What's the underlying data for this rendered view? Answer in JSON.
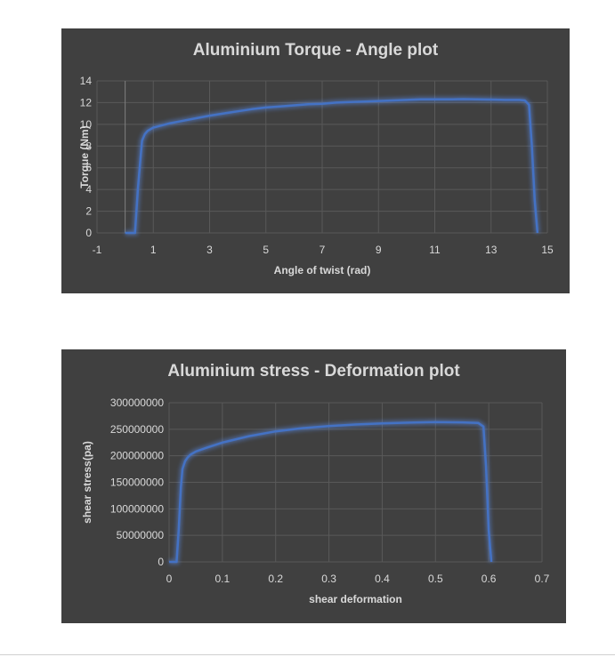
{
  "colors": {
    "panel_bg": "#404040",
    "text": "#d9d9d9",
    "grid": "#595959",
    "line": "#4472c4",
    "glow": "#5b8ff0"
  },
  "chart_data": [
    {
      "type": "line",
      "title": "Aluminium Torque  - Angle plot",
      "xlabel": "Angle of twist (rad)",
      "ylabel": "Torque (Nm)",
      "xlim": [
        -1,
        15
      ],
      "ylim": [
        0,
        14
      ],
      "xticks": [
        -1,
        1,
        3,
        5,
        7,
        9,
        11,
        13,
        15
      ],
      "yticks": [
        0,
        2,
        4,
        6,
        8,
        10,
        12,
        14
      ],
      "grid": true,
      "legend": "none",
      "series": [
        {
          "x": [
            0.0,
            0.35,
            0.45,
            0.55,
            0.6,
            0.7,
            0.8,
            1.0,
            1.3,
            1.6,
            2.0,
            2.5,
            3.0,
            3.5,
            4.0,
            4.5,
            5.0,
            5.5,
            6.0,
            6.5,
            7.0,
            7.5,
            8.0,
            8.5,
            9.0,
            9.5,
            10.0,
            10.5,
            11.0,
            11.5,
            12.0,
            12.5,
            13.0,
            13.5,
            14.0,
            14.2,
            14.35,
            14.45,
            14.55,
            14.65
          ],
          "y": [
            0,
            0,
            4.0,
            7.0,
            8.5,
            9.1,
            9.4,
            9.7,
            9.9,
            10.1,
            10.3,
            10.55,
            10.8,
            11.0,
            11.2,
            11.4,
            11.55,
            11.65,
            11.75,
            11.85,
            11.9,
            12.0,
            12.05,
            12.1,
            12.15,
            12.2,
            12.25,
            12.3,
            12.3,
            12.3,
            12.32,
            12.3,
            12.28,
            12.25,
            12.25,
            12.2,
            11.8,
            8.0,
            3.0,
            0
          ]
        }
      ]
    },
    {
      "type": "line",
      "title": "Aluminium stress - Deformation plot",
      "xlabel": "shear deformation",
      "ylabel": "shear stress(pa)",
      "xlim": [
        0,
        0.7
      ],
      "ylim": [
        0,
        300000000
      ],
      "xticks": [
        0,
        0.1,
        0.2,
        0.3,
        0.4,
        0.5,
        0.6,
        0.7
      ],
      "yticks": [
        0,
        50000000,
        100000000,
        150000000,
        200000000,
        250000000,
        300000000
      ],
      "grid": true,
      "legend": "none",
      "series": [
        {
          "x": [
            0.0,
            0.014,
            0.018,
            0.022,
            0.025,
            0.03,
            0.035,
            0.04,
            0.05,
            0.07,
            0.1,
            0.15,
            0.2,
            0.25,
            0.3,
            0.35,
            0.4,
            0.45,
            0.5,
            0.55,
            0.58,
            0.59,
            0.595,
            0.6,
            0.605
          ],
          "y": [
            0,
            0,
            60000000,
            140000000,
            175000000,
            190000000,
            197000000,
            202000000,
            208000000,
            215000000,
            225000000,
            237000000,
            246000000,
            252000000,
            256000000,
            259000000,
            261000000,
            262500000,
            263500000,
            263000000,
            262000000,
            255000000,
            180000000,
            60000000,
            0
          ]
        }
      ]
    }
  ]
}
